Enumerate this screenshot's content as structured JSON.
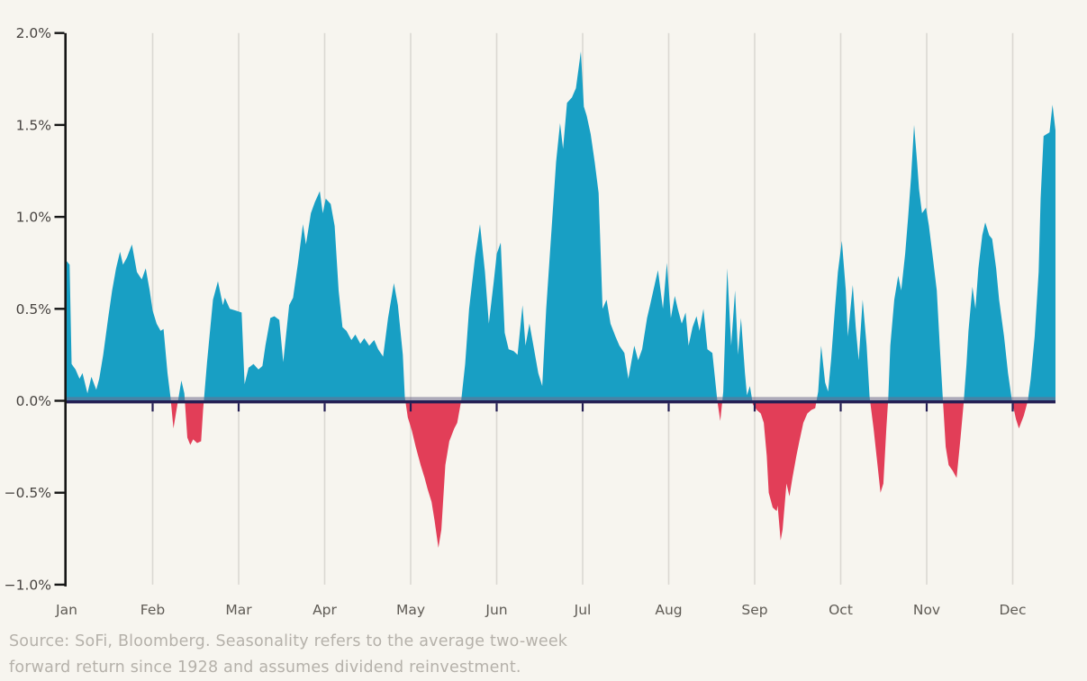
{
  "chart_data": {
    "type": "area",
    "title": "",
    "x_axis": {
      "tick_labels": [
        "Jan",
        "Feb",
        "Mar",
        "Apr",
        "May",
        "Jun",
        "Jul",
        "Aug",
        "Sep",
        "Oct",
        "Nov",
        "Dec"
      ],
      "note": "series ends mid-December; x values are fraction of the plotted span"
    },
    "y_axis": {
      "tick_labels": [
        "2.0%",
        "1.5%",
        "1.0%",
        "0.5%",
        "0.0%",
        "−0.5%",
        "−1.0%"
      ],
      "min": -1.0,
      "max": 2.0,
      "unit": "%"
    },
    "baseline": 0,
    "grid": {
      "vertical_month_lines": true,
      "horizontal_lines": false
    },
    "legend": "none",
    "colors": {
      "positive_fill": "#189fc4",
      "negative_fill": "#e23e58",
      "zero_line": "#241f54",
      "zero_line_upper_band": "#716c8c",
      "axis": "#161616",
      "gridline": "#dbd8d2",
      "background": "#f7f5ef"
    },
    "points": [
      [
        0.0,
        0.76
      ],
      [
        0.003,
        0.74
      ],
      [
        0.005,
        0.2
      ],
      [
        0.009,
        0.17
      ],
      [
        0.013,
        0.12
      ],
      [
        0.016,
        0.15
      ],
      [
        0.021,
        0.04
      ],
      [
        0.025,
        0.13
      ],
      [
        0.03,
        0.06
      ],
      [
        0.033,
        0.12
      ],
      [
        0.037,
        0.25
      ],
      [
        0.042,
        0.45
      ],
      [
        0.046,
        0.6
      ],
      [
        0.05,
        0.72
      ],
      [
        0.054,
        0.81
      ],
      [
        0.057,
        0.74
      ],
      [
        0.061,
        0.78
      ],
      [
        0.066,
        0.85
      ],
      [
        0.071,
        0.7
      ],
      [
        0.076,
        0.66
      ],
      [
        0.08,
        0.72
      ],
      [
        0.084,
        0.6
      ],
      [
        0.087,
        0.49
      ],
      [
        0.091,
        0.42
      ],
      [
        0.095,
        0.38
      ],
      [
        0.098,
        0.39
      ],
      [
        0.102,
        0.15
      ],
      [
        0.105,
        0.02
      ],
      [
        0.108,
        -0.15
      ],
      [
        0.112,
        -0.02
      ],
      [
        0.116,
        0.11
      ],
      [
        0.119,
        0.04
      ],
      [
        0.122,
        -0.2
      ],
      [
        0.125,
        -0.24
      ],
      [
        0.128,
        -0.21
      ],
      [
        0.132,
        -0.23
      ],
      [
        0.136,
        -0.22
      ],
      [
        0.138,
        -0.05
      ],
      [
        0.142,
        0.21
      ],
      [
        0.148,
        0.55
      ],
      [
        0.153,
        0.65
      ],
      [
        0.158,
        0.52
      ],
      [
        0.16,
        0.56
      ],
      [
        0.165,
        0.5
      ],
      [
        0.171,
        0.49
      ],
      [
        0.177,
        0.48
      ],
      [
        0.18,
        0.09
      ],
      [
        0.184,
        0.18
      ],
      [
        0.189,
        0.2
      ],
      [
        0.194,
        0.17
      ],
      [
        0.198,
        0.19
      ],
      [
        0.201,
        0.3
      ],
      [
        0.206,
        0.45
      ],
      [
        0.21,
        0.46
      ],
      [
        0.215,
        0.44
      ],
      [
        0.219,
        0.21
      ],
      [
        0.225,
        0.52
      ],
      [
        0.229,
        0.56
      ],
      [
        0.234,
        0.75
      ],
      [
        0.239,
        0.96
      ],
      [
        0.242,
        0.85
      ],
      [
        0.247,
        1.02
      ],
      [
        0.251,
        1.08
      ],
      [
        0.256,
        1.14
      ],
      [
        0.259,
        1.02
      ],
      [
        0.262,
        1.1
      ],
      [
        0.267,
        1.07
      ],
      [
        0.271,
        0.95
      ],
      [
        0.275,
        0.6
      ],
      [
        0.279,
        0.4
      ],
      [
        0.283,
        0.38
      ],
      [
        0.288,
        0.33
      ],
      [
        0.292,
        0.36
      ],
      [
        0.297,
        0.31
      ],
      [
        0.301,
        0.34
      ],
      [
        0.306,
        0.3
      ],
      [
        0.311,
        0.33
      ],
      [
        0.315,
        0.28
      ],
      [
        0.32,
        0.24
      ],
      [
        0.325,
        0.45
      ],
      [
        0.331,
        0.64
      ],
      [
        0.335,
        0.52
      ],
      [
        0.34,
        0.25
      ],
      [
        0.342,
        0.02
      ],
      [
        0.345,
        -0.09
      ],
      [
        0.349,
        -0.16
      ],
      [
        0.353,
        -0.25
      ],
      [
        0.358,
        -0.35
      ],
      [
        0.362,
        -0.42
      ],
      [
        0.365,
        -0.48
      ],
      [
        0.369,
        -0.55
      ],
      [
        0.372,
        -0.65
      ],
      [
        0.376,
        -0.8
      ],
      [
        0.379,
        -0.7
      ],
      [
        0.383,
        -0.35
      ],
      [
        0.387,
        -0.22
      ],
      [
        0.392,
        -0.15
      ],
      [
        0.395,
        -0.12
      ],
      [
        0.399,
        0.0
      ],
      [
        0.403,
        0.2
      ],
      [
        0.407,
        0.5
      ],
      [
        0.413,
        0.78
      ],
      [
        0.418,
        0.96
      ],
      [
        0.423,
        0.7
      ],
      [
        0.427,
        0.42
      ],
      [
        0.432,
        0.65
      ],
      [
        0.435,
        0.8
      ],
      [
        0.439,
        0.86
      ],
      [
        0.443,
        0.37
      ],
      [
        0.447,
        0.28
      ],
      [
        0.452,
        0.27
      ],
      [
        0.456,
        0.25
      ],
      [
        0.461,
        0.52
      ],
      [
        0.464,
        0.3
      ],
      [
        0.468,
        0.42
      ],
      [
        0.472,
        0.3
      ],
      [
        0.477,
        0.15
      ],
      [
        0.481,
        0.08
      ],
      [
        0.485,
        0.5
      ],
      [
        0.49,
        0.9
      ],
      [
        0.495,
        1.3
      ],
      [
        0.499,
        1.51
      ],
      [
        0.502,
        1.37
      ],
      [
        0.506,
        1.62
      ],
      [
        0.511,
        1.65
      ],
      [
        0.515,
        1.7
      ],
      [
        0.52,
        1.9
      ],
      [
        0.523,
        1.6
      ],
      [
        0.526,
        1.55
      ],
      [
        0.53,
        1.45
      ],
      [
        0.534,
        1.3
      ],
      [
        0.538,
        1.13
      ],
      [
        0.542,
        0.5
      ],
      [
        0.546,
        0.55
      ],
      [
        0.55,
        0.42
      ],
      [
        0.555,
        0.35
      ],
      [
        0.559,
        0.3
      ],
      [
        0.564,
        0.26
      ],
      [
        0.568,
        0.12
      ],
      [
        0.574,
        0.3
      ],
      [
        0.578,
        0.22
      ],
      [
        0.582,
        0.28
      ],
      [
        0.587,
        0.45
      ],
      [
        0.59,
        0.52
      ],
      [
        0.595,
        0.64
      ],
      [
        0.598,
        0.71
      ],
      [
        0.603,
        0.5
      ],
      [
        0.607,
        0.75
      ],
      [
        0.611,
        0.45
      ],
      [
        0.615,
        0.57
      ],
      [
        0.618,
        0.5
      ],
      [
        0.622,
        0.42
      ],
      [
        0.626,
        0.48
      ],
      [
        0.629,
        0.3
      ],
      [
        0.633,
        0.4
      ],
      [
        0.637,
        0.46
      ],
      [
        0.64,
        0.38
      ],
      [
        0.644,
        0.5
      ],
      [
        0.648,
        0.28
      ],
      [
        0.653,
        0.26
      ],
      [
        0.658,
        0.0
      ],
      [
        0.661,
        -0.11
      ],
      [
        0.664,
        0.05
      ],
      [
        0.668,
        0.72
      ],
      [
        0.672,
        0.3
      ],
      [
        0.676,
        0.6
      ],
      [
        0.679,
        0.25
      ],
      [
        0.682,
        0.45
      ],
      [
        0.686,
        0.15
      ],
      [
        0.688,
        0.03
      ],
      [
        0.691,
        0.08
      ],
      [
        0.694,
        -0.02
      ],
      [
        0.698,
        -0.05
      ],
      [
        0.702,
        -0.07
      ],
      [
        0.705,
        -0.12
      ],
      [
        0.708,
        -0.3
      ],
      [
        0.71,
        -0.5
      ],
      [
        0.714,
        -0.58
      ],
      [
        0.718,
        -0.6
      ],
      [
        0.719,
        -0.57
      ],
      [
        0.722,
        -0.76
      ],
      [
        0.724,
        -0.7
      ],
      [
        0.728,
        -0.45
      ],
      [
        0.731,
        -0.52
      ],
      [
        0.734,
        -0.42
      ],
      [
        0.738,
        -0.3
      ],
      [
        0.741,
        -0.22
      ],
      [
        0.745,
        -0.12
      ],
      [
        0.749,
        -0.07
      ],
      [
        0.753,
        -0.05
      ],
      [
        0.757,
        -0.04
      ],
      [
        0.76,
        0.05
      ],
      [
        0.763,
        0.3
      ],
      [
        0.767,
        0.1
      ],
      [
        0.77,
        0.05
      ],
      [
        0.773,
        0.22
      ],
      [
        0.777,
        0.5
      ],
      [
        0.78,
        0.7
      ],
      [
        0.784,
        0.87
      ],
      [
        0.788,
        0.6
      ],
      [
        0.79,
        0.35
      ],
      [
        0.795,
        0.63
      ],
      [
        0.798,
        0.4
      ],
      [
        0.801,
        0.22
      ],
      [
        0.805,
        0.55
      ],
      [
        0.809,
        0.3
      ],
      [
        0.812,
        0.02
      ],
      [
        0.816,
        -0.15
      ],
      [
        0.82,
        -0.35
      ],
      [
        0.823,
        -0.5
      ],
      [
        0.826,
        -0.45
      ],
      [
        0.829,
        -0.15
      ],
      [
        0.831,
        0.02
      ],
      [
        0.833,
        0.3
      ],
      [
        0.837,
        0.55
      ],
      [
        0.841,
        0.68
      ],
      [
        0.844,
        0.6
      ],
      [
        0.848,
        0.8
      ],
      [
        0.851,
        1.0
      ],
      [
        0.854,
        1.22
      ],
      [
        0.857,
        1.5
      ],
      [
        0.86,
        1.3
      ],
      [
        0.862,
        1.15
      ],
      [
        0.865,
        1.02
      ],
      [
        0.869,
        1.05
      ],
      [
        0.872,
        0.95
      ],
      [
        0.876,
        0.78
      ],
      [
        0.88,
        0.6
      ],
      [
        0.883,
        0.3
      ],
      [
        0.886,
        0.02
      ],
      [
        0.889,
        -0.25
      ],
      [
        0.892,
        -0.35
      ],
      [
        0.896,
        -0.38
      ],
      [
        0.9,
        -0.42
      ],
      [
        0.904,
        -0.2
      ],
      [
        0.907,
        -0.02
      ],
      [
        0.91,
        0.2
      ],
      [
        0.912,
        0.38
      ],
      [
        0.916,
        0.62
      ],
      [
        0.919,
        0.5
      ],
      [
        0.922,
        0.72
      ],
      [
        0.926,
        0.9
      ],
      [
        0.929,
        0.97
      ],
      [
        0.933,
        0.9
      ],
      [
        0.936,
        0.88
      ],
      [
        0.94,
        0.72
      ],
      [
        0.943,
        0.55
      ],
      [
        0.948,
        0.35
      ],
      [
        0.952,
        0.15
      ],
      [
        0.956,
        0.0
      ],
      [
        0.96,
        -0.1
      ],
      [
        0.963,
        -0.15
      ],
      [
        0.968,
        -0.08
      ],
      [
        0.972,
        0.0
      ],
      [
        0.975,
        0.12
      ],
      [
        0.979,
        0.35
      ],
      [
        0.983,
        0.7
      ],
      [
        0.985,
        1.1
      ],
      [
        0.988,
        1.44
      ],
      [
        0.991,
        1.45
      ],
      [
        0.994,
        1.46
      ],
      [
        0.997,
        1.61
      ],
      [
        1.0,
        1.47
      ]
    ]
  },
  "footer": {
    "line1": "Source: SoFi, Bloomberg. Seasonality refers to the average two-week",
    "line2": "forward return since 1928 and assumes dividend reinvestment."
  }
}
